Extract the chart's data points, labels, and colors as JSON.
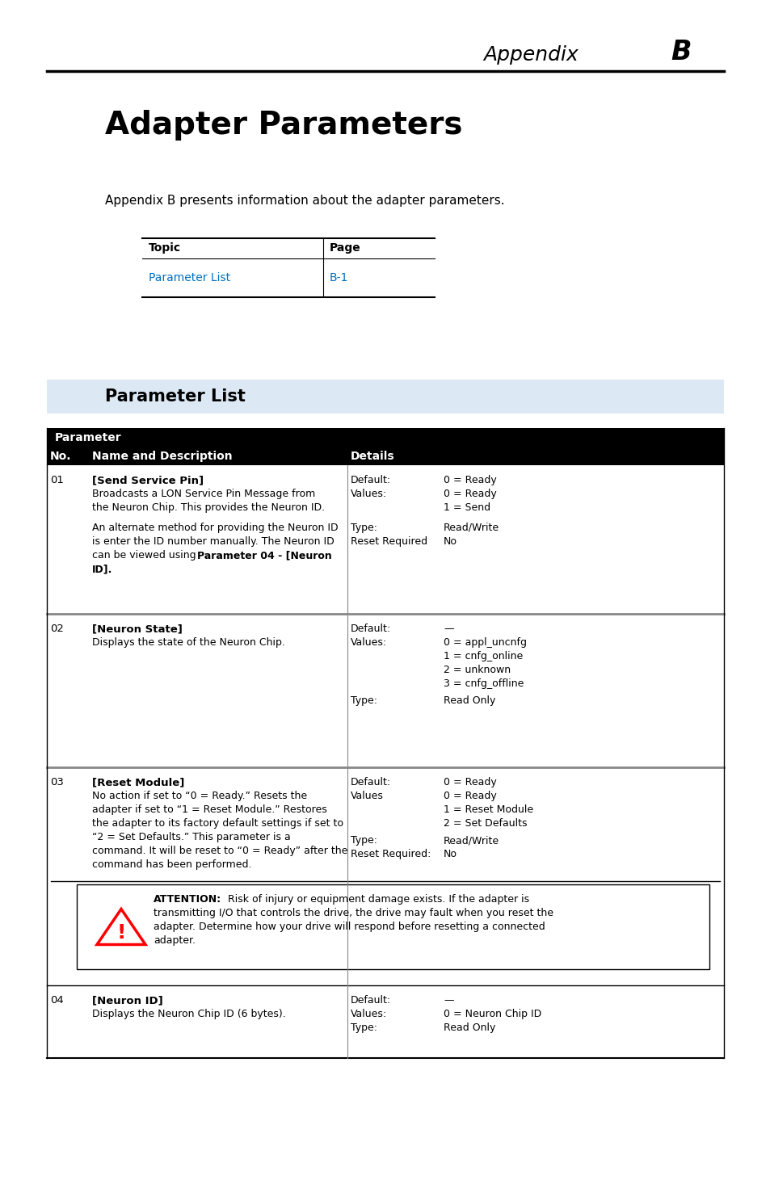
{
  "bg_color": "#ffffff",
  "section_header_bg": "#dce9f5",
  "table_header_bg": "#000000",
  "link_color": "#0070c0",
  "gray_line": "#888888",
  "appendix_label": "Appendix ",
  "appendix_letter": "B",
  "main_title": "Adapter Parameters",
  "intro_text": "Appendix B presents information about the adapter parameters.",
  "toc_header_topic": "Topic",
  "toc_header_page": "Page",
  "toc_row_topic": "Parameter List",
  "toc_row_page": "B-1",
  "section_header": "Parameter List"
}
